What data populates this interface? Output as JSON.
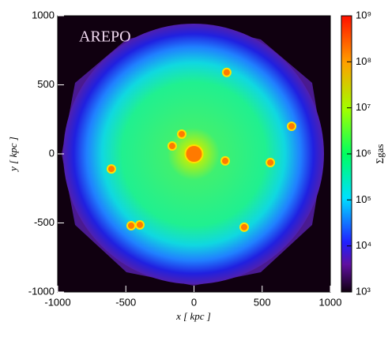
{
  "chart_data": {
    "type": "heatmap",
    "annotation": "AREPO",
    "xlabel": "x [ kpc ]",
    "ylabel": "y [ kpc ]",
    "xlim": [
      -1000,
      1000
    ],
    "ylim": [
      -1000,
      1000
    ],
    "xticks": [
      -1000,
      -500,
      0,
      500,
      1000
    ],
    "yticks": [
      -1000,
      -500,
      0,
      500,
      1000
    ],
    "x": [
      240,
      716,
      -90,
      -160,
      0,
      229,
      560,
      -606,
      368,
      -461,
      -397
    ],
    "y": [
      590,
      200,
      143,
      57,
      0,
      -51,
      -63,
      -109,
      -531,
      -520,
      -514
    ],
    "color": "#ff7a00",
    "colorbar_label": "Σgas",
    "clim": [
      1000,
      1000000000
    ],
    "clog": true,
    "cticks": [
      {
        "value": 1000,
        "label": "10³"
      },
      {
        "value": 10000,
        "label": "10⁴"
      },
      {
        "value": 100000,
        "label": "10⁵"
      },
      {
        "value": 1000000,
        "label": "10⁶"
      },
      {
        "value": 10000000,
        "label": "10⁷"
      },
      {
        "value": 100000000,
        "label": "10⁸"
      },
      {
        "value": 1000000000,
        "label": "10⁹"
      }
    ]
  }
}
